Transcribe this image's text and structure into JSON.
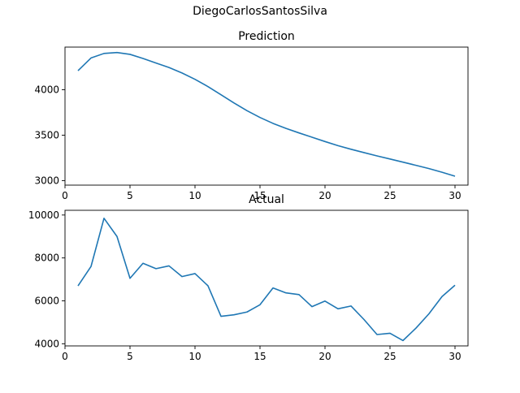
{
  "figure_title": "DiegoCarlosSantosSilva",
  "chart_data": [
    {
      "type": "line",
      "title": "Prediction",
      "xlabel": "",
      "ylabel": "",
      "x": [
        1,
        2,
        3,
        4,
        5,
        6,
        7,
        8,
        9,
        10,
        11,
        12,
        13,
        14,
        15,
        16,
        17,
        18,
        19,
        20,
        21,
        22,
        23,
        24,
        25,
        26,
        27,
        28,
        29,
        30
      ],
      "series": [
        {
          "values": [
            4210,
            4350,
            4400,
            4410,
            4390,
            4345,
            4295,
            4245,
            4185,
            4115,
            4035,
            3945,
            3855,
            3770,
            3695,
            3630,
            3575,
            3525,
            3478,
            3430,
            3385,
            3345,
            3308,
            3272,
            3238,
            3203,
            3168,
            3132,
            3092,
            3048
          ]
        }
      ],
      "color": "#1f77b4",
      "xlim": [
        0,
        31
      ],
      "ylim": [
        2950,
        4470
      ],
      "xticks": [
        0,
        5,
        10,
        15,
        20,
        25,
        30
      ],
      "yticks": [
        3000,
        3500,
        4000
      ],
      "grid": false
    },
    {
      "type": "line",
      "title": "Actual",
      "xlabel": "",
      "ylabel": "",
      "x": [
        1,
        2,
        3,
        4,
        5,
        6,
        7,
        8,
        9,
        10,
        11,
        12,
        13,
        14,
        15,
        16,
        17,
        18,
        19,
        20,
        21,
        22,
        23,
        24,
        25,
        26,
        27,
        28,
        29,
        30
      ],
      "series": [
        {
          "values": [
            6700,
            7600,
            9850,
            9000,
            7050,
            7750,
            7500,
            7630,
            7130,
            7270,
            6700,
            5280,
            5350,
            5480,
            5820,
            6600,
            6370,
            6290,
            5730,
            5990,
            5630,
            5760,
            5130,
            4430,
            4490,
            4150,
            4730,
            5400,
            6200,
            6730
          ]
        }
      ],
      "color": "#1f77b4",
      "xlim": [
        0,
        31
      ],
      "ylim": [
        3900,
        10220
      ],
      "xticks": [
        0,
        5,
        10,
        15,
        20,
        25,
        30
      ],
      "yticks": [
        4000,
        6000,
        8000,
        10000
      ],
      "grid": false
    }
  ]
}
